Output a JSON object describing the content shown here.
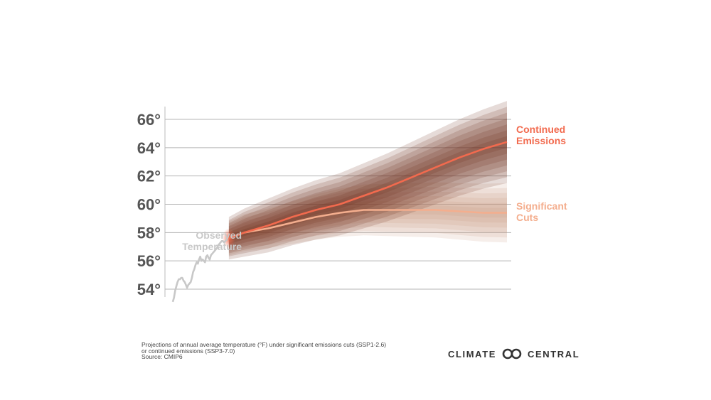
{
  "chart_data": {
    "type": "line",
    "y_unit": "°F",
    "ylim": [
      52.5,
      67
    ],
    "y_ticks": [
      54,
      56,
      58,
      60,
      62,
      64,
      66
    ],
    "y_tick_labels": [
      "54°",
      "56°",
      "58°",
      "60°",
      "62°",
      "64°",
      "66°"
    ],
    "grid": "horizontal",
    "series": [
      {
        "name_lines": [
          "Observed",
          "Temperature"
        ],
        "color": "#c8c8c8",
        "x": [
          0,
          1,
          2,
          3,
          4,
          5,
          6,
          7,
          8,
          9,
          10,
          11,
          12,
          13,
          14,
          15,
          16,
          17,
          18,
          19,
          20,
          21,
          22,
          23,
          24,
          25,
          26,
          27,
          28,
          29,
          30,
          31,
          32,
          33,
          34,
          35,
          36,
          37,
          38,
          39,
          40,
          41,
          42,
          43,
          44,
          45,
          46
        ],
        "values": [
          53.1,
          53.4,
          53.9,
          54.2,
          54.5,
          54.7,
          54.7,
          54.8,
          54.8,
          54.6,
          54.5,
          54.3,
          54.1,
          54.3,
          54.4,
          54.5,
          54.8,
          55.2,
          55.4,
          55.7,
          55.9,
          55.8,
          56.1,
          56.3,
          56.0,
          56.1,
          56.0,
          55.9,
          56.3,
          56.4,
          56.2,
          56.1,
          56.4,
          56.5,
          56.6,
          56.7,
          56.8,
          56.9,
          57.1,
          57.2,
          57.3,
          57.4,
          57.4,
          57.3,
          57.4,
          57.5,
          57.5
        ]
      },
      {
        "name_lines": [
          "Significant",
          "Cuts"
        ],
        "color": "#f4ae8e",
        "x": [
          47,
          60,
          80,
          100,
          120,
          140,
          160,
          180,
          200,
          220,
          240,
          260,
          280
        ],
        "values": [
          57.6,
          58.0,
          58.3,
          58.7,
          59.1,
          59.4,
          59.6,
          59.6,
          59.6,
          59.6,
          59.5,
          59.4,
          59.4
        ],
        "band_spread": [
          1.2,
          1.3,
          1.4,
          1.5,
          1.6,
          1.7,
          1.8,
          1.85,
          1.9,
          1.95,
          2.0,
          2.05,
          2.1
        ]
      },
      {
        "name_lines": [
          "Continued",
          "Emissions"
        ],
        "color": "#f26a4e",
        "x": [
          47,
          60,
          80,
          100,
          120,
          140,
          160,
          180,
          200,
          220,
          240,
          260,
          280
        ],
        "values": [
          57.6,
          58.0,
          58.5,
          59.1,
          59.6,
          60.0,
          60.6,
          61.2,
          61.9,
          62.6,
          63.3,
          63.9,
          64.4
        ],
        "band_spread": [
          1.5,
          1.7,
          1.9,
          2.0,
          2.1,
          2.2,
          2.3,
          2.4,
          2.5,
          2.6,
          2.7,
          2.8,
          2.9
        ]
      }
    ]
  },
  "footnote": {
    "line1": "Projections of annual average temperature (°F) under significant emissions cuts (SSP1-2.6)",
    "line2": "or continued emissions (SSP3-7.0)",
    "line3": "Source: CMIP6"
  },
  "brand": {
    "word1": "CLIMATE",
    "word2": "CENTRAL",
    "logo_icon": "linked-circles-icon"
  }
}
